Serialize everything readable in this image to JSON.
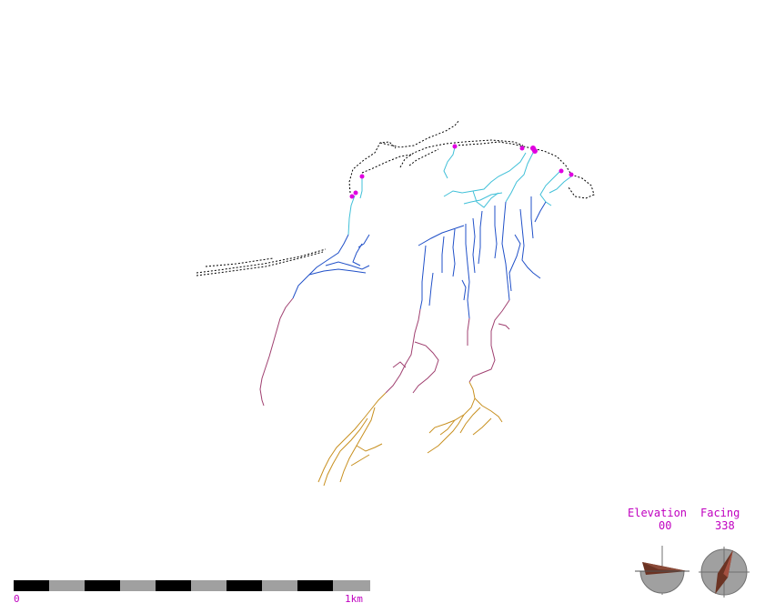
{
  "view": {
    "elevation_label": "Elevation",
    "elevation_value": "00",
    "facing_label": "Facing",
    "facing_value": "338",
    "facing_degrees": 338
  },
  "scale_bar": {
    "start_label": "0",
    "end_label": "1km",
    "segments": 10
  },
  "colors": {
    "label": "#c000c0",
    "surface_leg": "#000000",
    "entrance": "#e000e0",
    "depth_shallow": "#40c0d8",
    "depth_mid": "#2050c8",
    "depth_deep": "#a04070",
    "depth_deepest": "#c89020",
    "compass_disc": "#a0a0a0",
    "compass_needle": "#6b3323"
  }
}
